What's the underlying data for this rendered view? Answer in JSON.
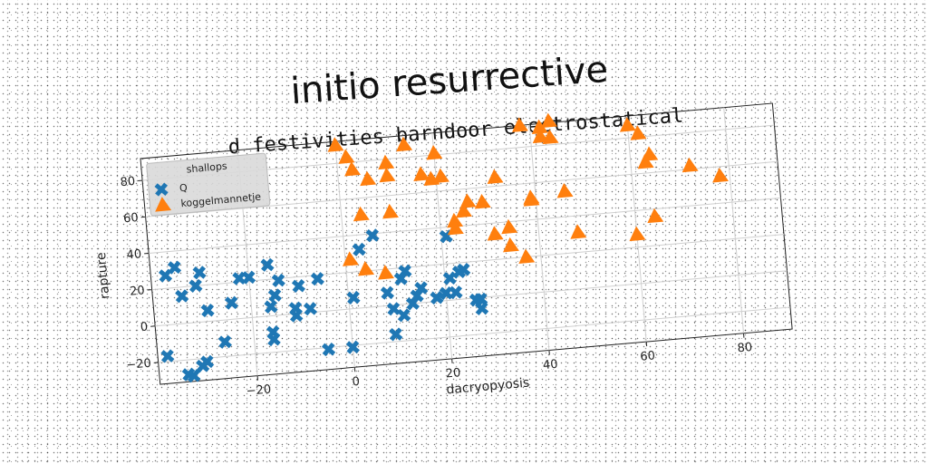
{
  "title": "initio resurrective",
  "chart_data": {
    "type": "scatter",
    "title": "d festivities barndoor electrostatical",
    "xlabel": "dacryopyosis",
    "ylabel": "rapture",
    "xlim": [
      -40,
      90
    ],
    "ylim": [
      -32,
      92
    ],
    "xticks": [
      -20,
      0,
      20,
      40,
      60,
      80
    ],
    "yticks": [
      -20,
      0,
      20,
      40,
      60,
      80
    ],
    "x_tick_labels": [
      "−20",
      "0",
      "20",
      "40",
      "60",
      "80"
    ],
    "y_tick_labels": [
      "−20",
      "0",
      "20",
      "40",
      "60",
      "80"
    ],
    "grid": true,
    "legend": {
      "title": "shallops",
      "position": "top-left"
    },
    "series": [
      {
        "name": "Q",
        "marker": "x",
        "color": "#1f77b4",
        "points": [
          [
            -38,
            -17
          ],
          [
            -37,
            27
          ],
          [
            -35,
            31
          ],
          [
            -34,
            -28
          ],
          [
            -34,
            15
          ],
          [
            -33,
            -29
          ],
          [
            -31,
            20
          ],
          [
            -30,
            27
          ],
          [
            -30,
            -22
          ],
          [
            -31,
            -24
          ],
          [
            -29,
            6
          ],
          [
            -26,
            -12
          ],
          [
            -24,
            9
          ],
          [
            -22,
            22
          ],
          [
            -20,
            22
          ],
          [
            -16,
            28
          ],
          [
            -16,
            5
          ],
          [
            -16,
            -13
          ],
          [
            -16,
            -9
          ],
          [
            -15,
            11
          ],
          [
            -14,
            19
          ],
          [
            -11,
            -1
          ],
          [
            -11,
            3
          ],
          [
            -10,
            15
          ],
          [
            -8,
            2
          ],
          [
            -6,
            18
          ],
          [
            -5,
            -21
          ],
          [
            0,
            -21
          ],
          [
            1,
            6
          ],
          [
            3,
            32
          ],
          [
            6,
            39
          ],
          [
            8,
            7
          ],
          [
            9,
            -16
          ],
          [
            9,
            -2
          ],
          [
            11,
            -6
          ],
          [
            11,
            14
          ],
          [
            12,
            18
          ],
          [
            13,
            0
          ],
          [
            14,
            4
          ],
          [
            15,
            8
          ],
          [
            18,
            2
          ],
          [
            20,
            4
          ],
          [
            21,
            12
          ],
          [
            21,
            35
          ],
          [
            22,
            4
          ],
          [
            23,
            15
          ],
          [
            24,
            16
          ],
          [
            26,
            -1
          ],
          [
            27,
            -1
          ],
          [
            27,
            -6
          ]
        ]
      },
      {
        "name": "koggelmannetje",
        "marker": "triangle",
        "color": "#ff7f0e",
        "points": [
          [
            0,
            90
          ],
          [
            1,
            27
          ],
          [
            2,
            83
          ],
          [
            3,
            76
          ],
          [
            4,
            51
          ],
          [
            4,
            21
          ],
          [
            6,
            70
          ],
          [
            8,
            18
          ],
          [
            10,
            78
          ],
          [
            10,
            71
          ],
          [
            10,
            51
          ],
          [
            14,
            87
          ],
          [
            17,
            70
          ],
          [
            19,
            67
          ],
          [
            20,
            81
          ],
          [
            21,
            68
          ],
          [
            23,
            43
          ],
          [
            23,
            39
          ],
          [
            25,
            48
          ],
          [
            26,
            53
          ],
          [
            29,
            52
          ],
          [
            31,
            34
          ],
          [
            32,
            65
          ],
          [
            34,
            27
          ],
          [
            34,
            37
          ],
          [
            37,
            20
          ],
          [
            38,
            92
          ],
          [
            39,
            52
          ],
          [
            39,
            51
          ],
          [
            42,
            85
          ],
          [
            42,
            90
          ],
          [
            44,
            84
          ],
          [
            44,
            93
          ],
          [
            46,
            54
          ],
          [
            48,
            31
          ],
          [
            60,
            87
          ],
          [
            60,
            27
          ],
          [
            62,
            82
          ],
          [
            63,
            66
          ],
          [
            64,
            70
          ],
          [
            64,
            36
          ],
          [
            72,
            62
          ],
          [
            78,
            55
          ]
        ]
      }
    ]
  }
}
